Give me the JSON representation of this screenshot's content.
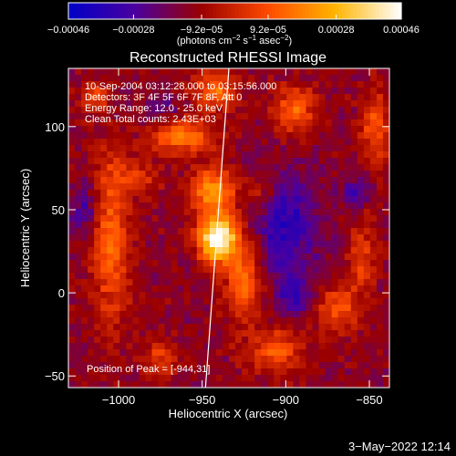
{
  "chart_data": {
    "type": "heatmap",
    "title": "Reconstructed RHESSI Image",
    "header_lines": [
      "10-Sep-2004 03:12:28.000 to 03:15:56.000",
      "Detectors: 3F 4F 5F 6F 7F 8F, Att 0",
      "Energy Range: 12.0 - 25.0 keV",
      "Clean     Total counts: 2.43E+03"
    ],
    "peak_label": "Position of Peak = [-944,31]",
    "peak": {
      "x": -944,
      "y": 31
    },
    "xlabel": "Heliocentric X (arcsec)",
    "ylabel": "Heliocentric Y (arcsec)",
    "xlim": [
      -1030,
      -838
    ],
    "ylim": [
      -57,
      135
    ],
    "x_ticks": [
      {
        "value": -1000,
        "label": "−1000"
      },
      {
        "value": -950,
        "label": "−950"
      },
      {
        "value": -900,
        "label": "−900"
      },
      {
        "value": -850,
        "label": "−850"
      }
    ],
    "y_ticks": [
      {
        "value": 100,
        "label": "100"
      },
      {
        "value": 50,
        "label": "50"
      },
      {
        "value": 0,
        "label": "0"
      },
      {
        "value": -50,
        "label": "−50"
      }
    ],
    "limb_line": [
      {
        "x": -948,
        "y": -57
      },
      {
        "x": -934,
        "y": 135
      }
    ],
    "colorbar": {
      "min": -0.00046,
      "max": 0.00046,
      "ticks": [
        {
          "value": -0.00046,
          "label": "−0.00046"
        },
        {
          "value": -0.00028,
          "label": "−0.00028"
        },
        {
          "value": -9.2e-05,
          "label": "−9.2e−05"
        },
        {
          "value": 9.2e-05,
          "label": "9.2e−05"
        },
        {
          "value": 0.00028,
          "label": "0.00028"
        },
        {
          "value": 0.00046,
          "label": "0.00046"
        }
      ],
      "units_prefix": "(photons cm",
      "units_exp1": "−2",
      "units_mid1": " s",
      "units_exp2": "−1",
      "units_mid2": " asec",
      "units_exp3": "−2",
      "units_suffix": ")"
    },
    "colormap": [
      "#0000c8",
      "#4b00a0",
      "#9b0000",
      "#ff4a00",
      "#ffb400",
      "#ffffff"
    ],
    "sources": [
      {
        "x": -941,
        "y": 33,
        "sx": 8,
        "sy": 10,
        "a": 2.2
      },
      {
        "x": -944,
        "y": 62,
        "sx": 9,
        "sy": 9,
        "a": 1.3
      },
      {
        "x": -925,
        "y": 8,
        "sx": 8,
        "sy": 18,
        "a": 1.0
      },
      {
        "x": -962,
        "y": 94,
        "sx": 13,
        "sy": 7,
        "a": 1.1
      },
      {
        "x": -942,
        "y": 122,
        "sx": 9,
        "sy": 8,
        "a": 1.0
      },
      {
        "x": -1005,
        "y": 32,
        "sx": 8,
        "sy": 36,
        "a": 0.9
      },
      {
        "x": -895,
        "y": 110,
        "sx": 9,
        "sy": 10,
        "a": 0.9
      },
      {
        "x": -847,
        "y": 98,
        "sx": 6,
        "sy": 16,
        "a": 0.8
      },
      {
        "x": -906,
        "y": -35,
        "sx": 12,
        "sy": 9,
        "a": 0.8
      },
      {
        "x": -870,
        "y": -10,
        "sx": 8,
        "sy": 9,
        "a": 0.8
      },
      {
        "x": -1015,
        "y": 118,
        "sx": 6,
        "sy": 6,
        "a": 0.7
      },
      {
        "x": -975,
        "y": -40,
        "sx": 6,
        "sy": 9,
        "a": 0.6
      },
      {
        "x": -855,
        "y": 20,
        "sx": 6,
        "sy": 20,
        "a": 0.6
      },
      {
        "x": -990,
        "y": 70,
        "sx": 10,
        "sy": 8,
        "a": 0.5
      },
      {
        "x": -915,
        "y": 60,
        "sx": 7,
        "sy": 8,
        "a": 0.5
      }
    ],
    "neg_sources": [
      {
        "x": -900,
        "y": 40,
        "sx": 14,
        "sy": 22,
        "a": 0.8
      },
      {
        "x": -895,
        "y": -2,
        "sx": 6,
        "sy": 8,
        "a": 0.7
      },
      {
        "x": -1020,
        "y": 50,
        "sx": 6,
        "sy": 10,
        "a": 0.6
      },
      {
        "x": -858,
        "y": 60,
        "sx": 6,
        "sy": 8,
        "a": 0.6
      },
      {
        "x": -975,
        "y": 110,
        "sx": 7,
        "sy": 7,
        "a": 0.4
      }
    ]
  },
  "footer": {
    "date_stamp": "3−May−2022 12:14"
  }
}
